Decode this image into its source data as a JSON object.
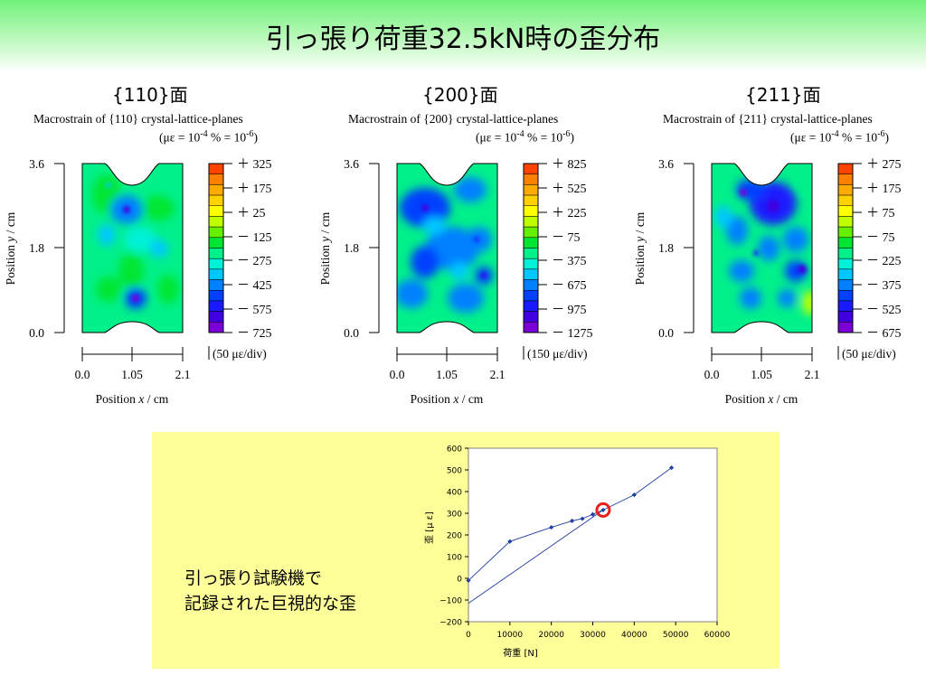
{
  "slide": {
    "title": "引っ張り荷重32.5kN時の歪分布",
    "inset_text_line1": "引っ張り試験機で",
    "inset_text_line2": "記録された巨視的な歪"
  },
  "colors": {
    "header_green": "#6ff27a",
    "inset_background": "#ffff99",
    "series_color": "#1f3f9f",
    "highlight_circle": "#e8201a",
    "contour_scale": [
      "#ff0000",
      "#ff4400",
      "#ff8000",
      "#ffaa00",
      "#ffd200",
      "#ffff00",
      "#bfff00",
      "#66f000",
      "#00e633",
      "#00f08a",
      "#00f0d8",
      "#00c8ff",
      "#0080ff",
      "#0040ff",
      "#1a1aff",
      "#4000e0",
      "#7a00d6",
      "#a000e0"
    ]
  },
  "chart_data": [
    {
      "type": "heatmap",
      "panel_label": "{110}面",
      "title": "Macrostrain of {110} crystal-lattice-planes",
      "subtitle_parts": [
        "(με = 10",
        "-4",
        " % = 10",
        "-6",
        ")"
      ],
      "xlabel_parts": [
        "Position ",
        "x",
        " / cm"
      ],
      "ylabel_parts": [
        "Position ",
        "y",
        " / cm"
      ],
      "xticks": [
        "0.0",
        "1.05",
        "2.1"
      ],
      "yticks": [
        "3.6",
        "1.8",
        "0.0"
      ],
      "xlim": [
        0.0,
        2.1
      ],
      "ylim": [
        0.0,
        3.6
      ],
      "colorbar_labels": [
        "＋ 325",
        "＋ 175",
        "＋ 25",
        "－ 125",
        "－ 275",
        "－ 425",
        "－ 575",
        "－ 725"
      ],
      "colorbar_step": "(50 με/div)"
    },
    {
      "type": "heatmap",
      "panel_label": "{200}面",
      "title": "Macrostrain of {200} crystal-lattice-planes",
      "subtitle_parts": [
        "(με = 10",
        "-4",
        " % = 10",
        "-6",
        ")"
      ],
      "xlabel_parts": [
        "Position ",
        "x",
        " / cm"
      ],
      "ylabel_parts": [
        "Position ",
        "y",
        " / cm"
      ],
      "xticks": [
        "0.0",
        "1.05",
        "2.1"
      ],
      "yticks": [
        "3.6",
        "1.8",
        "0.0"
      ],
      "xlim": [
        0.0,
        2.1
      ],
      "ylim": [
        0.0,
        3.6
      ],
      "colorbar_labels": [
        "＋ 825",
        "＋ 525",
        "＋ 225",
        "－ 75",
        "－ 375",
        "－ 675",
        "－ 975",
        "－ 1275"
      ],
      "colorbar_step": "(150 με/div)"
    },
    {
      "type": "heatmap",
      "panel_label": "{211}面",
      "title": "Macrostrain of {211} crystal-lattice-planes",
      "subtitle_parts": [
        "(με = 10",
        "-4",
        " % = 10",
        "-6",
        ")"
      ],
      "xlabel_parts": [
        "Position ",
        "x",
        " / cm"
      ],
      "ylabel_parts": [
        "Position ",
        "y",
        " / cm"
      ],
      "xticks": [
        "0.0",
        "1.05",
        "2.1"
      ],
      "yticks": [
        "3.6",
        "1.8",
        "0.0"
      ],
      "xlim": [
        0.0,
        2.1
      ],
      "ylim": [
        0.0,
        3.6
      ],
      "colorbar_labels": [
        "＋ 275",
        "＋ 175",
        "＋ 75",
        "－ 75",
        "－ 225",
        "－ 375",
        "－ 525",
        "－ 675"
      ],
      "colorbar_step": "(50 με/div)"
    },
    {
      "type": "line",
      "xlabel": "荷重 [N]",
      "ylabel": "歪 [μ ε]",
      "xlim": [
        0,
        60000
      ],
      "ylim": [
        -200,
        600
      ],
      "xticks": [
        "0",
        "10000",
        "20000",
        "30000",
        "40000",
        "50000",
        "60000"
      ],
      "yticks": [
        "600",
        "500",
        "400",
        "300",
        "200",
        "100",
        "0",
        "−100",
        "−200"
      ],
      "series": [
        {
          "x": [
            0,
            10000,
            20000,
            25000,
            27500,
            30000,
            32500,
            40000,
            49000
          ],
          "y": [
            -10,
            170,
            235,
            265,
            275,
            295,
            315,
            385,
            510
          ]
        },
        {
          "x": [
            0,
            32500
          ],
          "y": [
            -115,
            315
          ]
        }
      ],
      "highlight_point": {
        "x": 32500,
        "y": 315
      }
    }
  ]
}
